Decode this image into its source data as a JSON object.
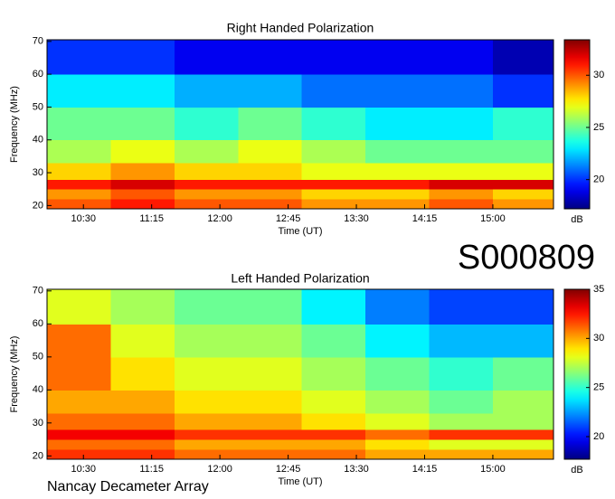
{
  "chart_data": [
    {
      "type": "heatmap",
      "title": "Right Handed Polarization",
      "x_label": "Time (UT)",
      "y_label": "Frequency (MHz)",
      "colorbar_label": "dB",
      "colormap": "jet",
      "xlim": [
        606,
        940
      ],
      "ylim": [
        19,
        70.5
      ],
      "zlim": [
        17.2,
        33.4
      ],
      "xticks": [
        {
          "value": 630,
          "label": "10:30"
        },
        {
          "value": 675,
          "label": "11:15"
        },
        {
          "value": 720,
          "label": "12:00"
        },
        {
          "value": 765,
          "label": "12:45"
        },
        {
          "value": 810,
          "label": "13:30"
        },
        {
          "value": 855,
          "label": "14:15"
        },
        {
          "value": 900,
          "label": "15:00"
        }
      ],
      "yticks": [
        20,
        30,
        40,
        50,
        60,
        70
      ],
      "zticks": [
        20,
        25,
        30
      ],
      "x_bins": [
        606,
        648,
        690,
        732,
        774,
        816,
        858,
        900,
        940
      ],
      "y_bins": [
        19,
        22,
        25,
        28,
        33,
        40,
        50,
        60,
        70.5
      ],
      "z": [
        [
          30,
          31,
          30,
          30,
          29,
          29,
          30,
          29
        ],
        [
          29,
          30,
          29,
          29,
          28,
          28,
          29,
          28
        ],
        [
          31,
          32,
          31,
          31,
          31,
          31,
          32,
          32
        ],
        [
          28,
          29,
          28,
          28,
          27,
          27,
          27,
          27
        ],
        [
          26,
          27,
          26,
          27,
          26,
          25,
          25,
          25
        ],
        [
          25,
          25,
          24,
          25,
          24,
          23,
          23,
          24
        ],
        [
          23,
          23,
          22,
          22,
          21,
          21,
          21,
          20
        ],
        [
          20,
          20,
          19,
          19,
          19,
          19,
          19,
          18
        ]
      ]
    },
    {
      "type": "heatmap",
      "title": "Left Handed Polarization",
      "x_label": "Time (UT)",
      "y_label": "Frequency (MHz)",
      "colorbar_label": "dB",
      "colormap": "jet",
      "xlim": [
        606,
        940
      ],
      "ylim": [
        19,
        70.5
      ],
      "zlim": [
        17.7,
        35
      ],
      "xticks": [
        {
          "value": 630,
          "label": "10:30"
        },
        {
          "value": 675,
          "label": "11:15"
        },
        {
          "value": 720,
          "label": "12:00"
        },
        {
          "value": 765,
          "label": "12:45"
        },
        {
          "value": 810,
          "label": "13:30"
        },
        {
          "value": 855,
          "label": "14:15"
        },
        {
          "value": 900,
          "label": "15:00"
        }
      ],
      "yticks": [
        20,
        30,
        40,
        50,
        60,
        70
      ],
      "zticks": [
        20,
        25,
        30,
        35
      ],
      "x_bins": [
        606,
        648,
        690,
        732,
        774,
        816,
        858,
        900,
        940
      ],
      "y_bins": [
        19,
        22,
        25,
        28,
        33,
        40,
        50,
        60,
        70.5
      ],
      "z": [
        [
          32,
          32,
          31,
          31,
          31,
          30,
          30,
          30
        ],
        [
          31,
          31,
          30,
          30,
          30,
          29,
          28,
          28
        ],
        [
          33,
          33,
          32,
          32,
          32,
          31,
          32,
          32
        ],
        [
          31,
          31,
          30,
          30,
          29,
          28,
          27,
          27
        ],
        [
          30,
          30,
          29,
          29,
          28,
          27,
          26,
          27
        ],
        [
          31,
          29,
          28,
          28,
          27,
          26,
          25,
          26
        ],
        [
          31,
          28,
          27,
          27,
          26,
          24,
          23,
          23
        ],
        [
          28,
          27,
          26,
          26,
          24,
          22,
          21,
          21
        ]
      ]
    }
  ],
  "station_id": "S000809",
  "observatory": "Nancay Decameter Array"
}
